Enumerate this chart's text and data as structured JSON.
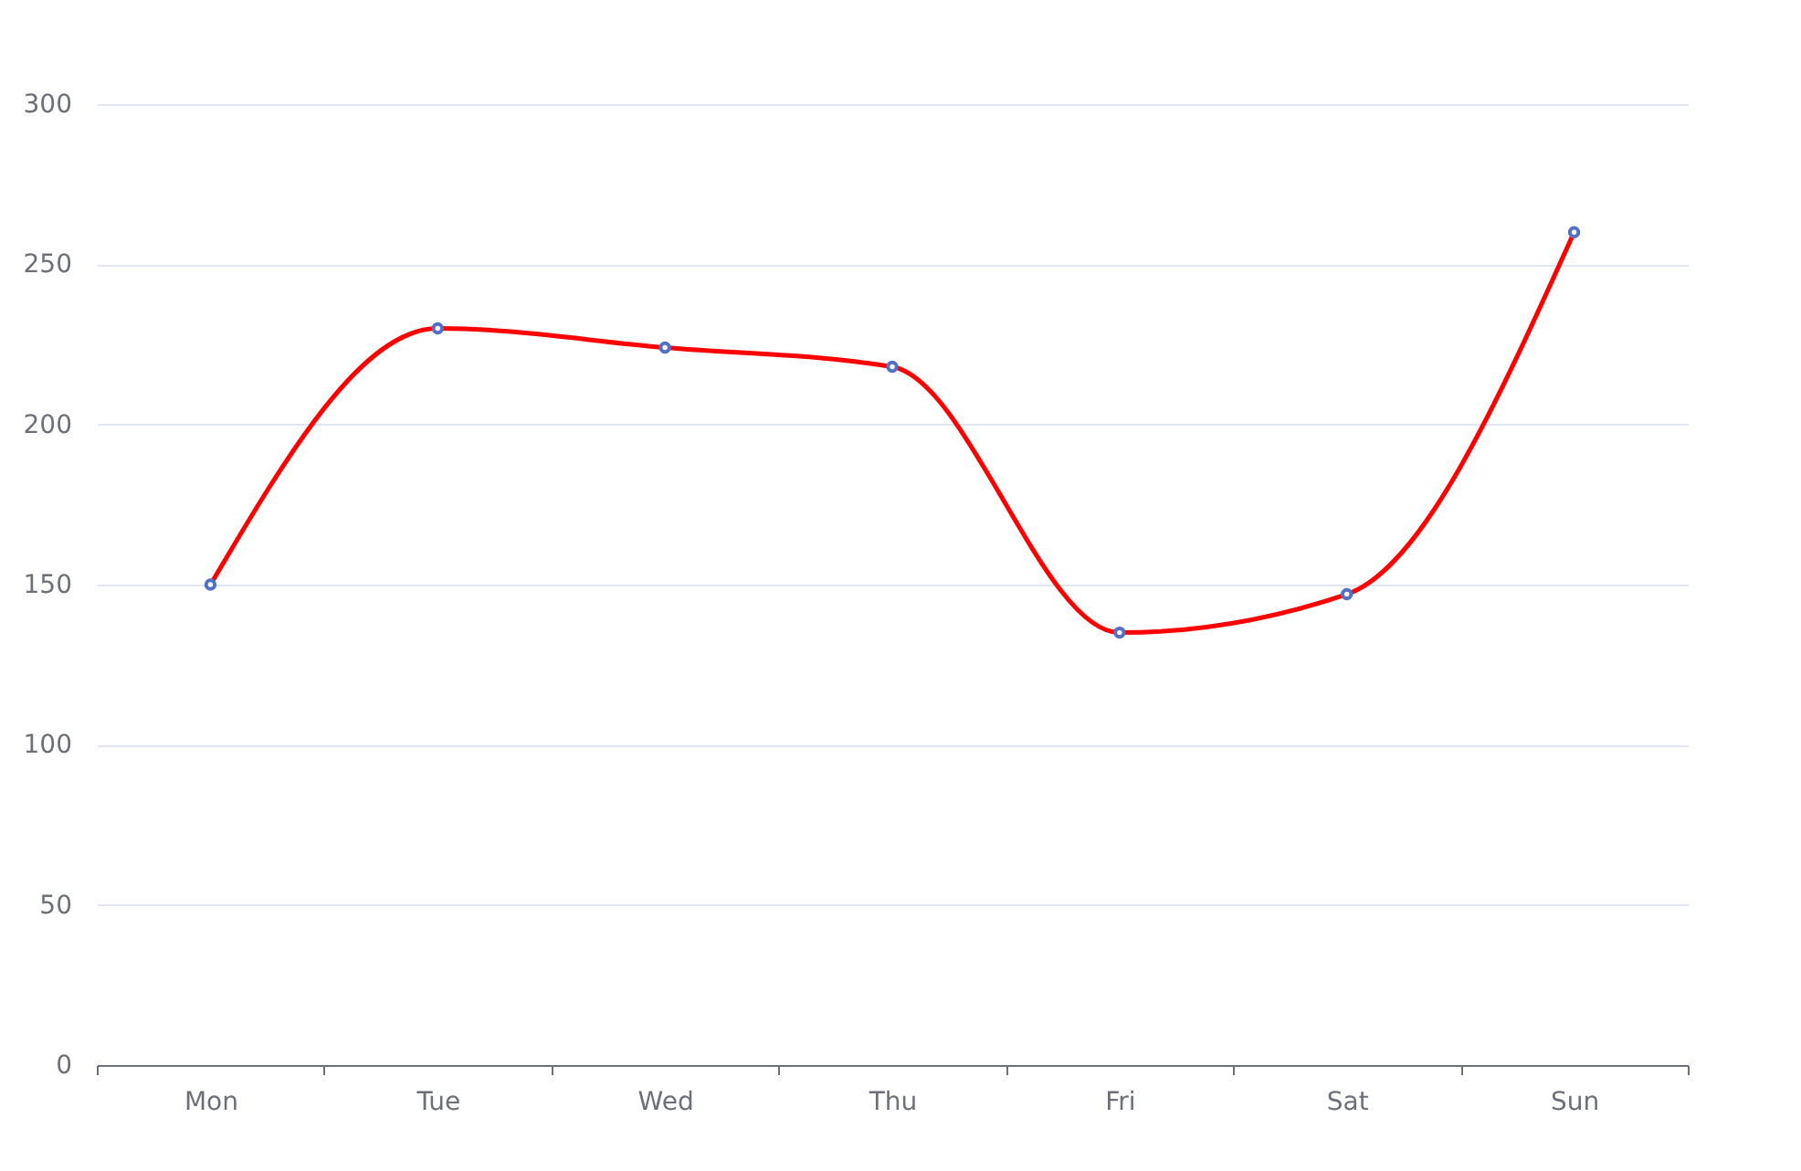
{
  "chart_data": {
    "type": "line",
    "categories": [
      "Mon",
      "Tue",
      "Wed",
      "Thu",
      "Fri",
      "Sat",
      "Sun"
    ],
    "series": [
      {
        "color": "#ff0000",
        "colors": [
          "#5470c6",
          "#5470c6",
          "#5470c6",
          "#5470c6",
          "#5470c6",
          "#5470c6",
          "#5470c6"
        ],
        "values": [
          150,
          230,
          224,
          218,
          135,
          147,
          260
        ]
      }
    ],
    "ylim": [
      0,
      300
    ],
    "yticks": [
      0,
      50,
      100,
      150,
      200,
      250,
      300
    ],
    "grid": "y",
    "marker": "circle",
    "line_style": "solid"
  }
}
